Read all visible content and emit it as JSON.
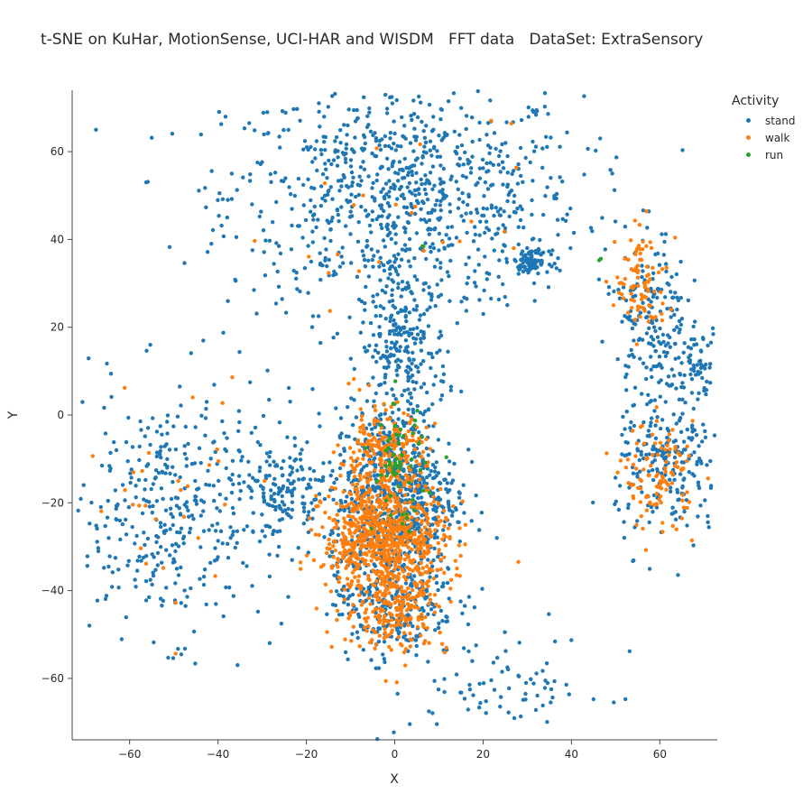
{
  "chart_data": {
    "type": "scatter",
    "title": "t-SNE on KuHar, MotionSense, UCI-HAR and WISDM   FFT data   DataSet: ExtraSensory",
    "xlabel": "X",
    "ylabel": "Y",
    "xlim": [
      -73,
      73
    ],
    "ylim": [
      -74,
      74
    ],
    "xticks": [
      -60,
      -40,
      -20,
      0,
      20,
      40,
      60
    ],
    "yticks": [
      -60,
      -40,
      -20,
      0,
      20,
      40,
      60
    ],
    "grid": false,
    "legend": {
      "title": "Activity",
      "placement": "top-right"
    },
    "series": [
      {
        "name": "stand",
        "color": "#1f77b4",
        "clusters": [
          {
            "cx": 2,
            "cy": 50,
            "sx": 20,
            "sy": 13,
            "n": 900
          },
          {
            "cx": 2,
            "cy": 15,
            "sx": 5,
            "sy": 9,
            "n": 260
          },
          {
            "cx": -50,
            "cy": -22,
            "sx": 13,
            "sy": 14,
            "n": 420
          },
          {
            "cx": 0,
            "cy": -18,
            "sx": 7,
            "sy": 10,
            "n": 700
          },
          {
            "cx": 0,
            "cy": -42,
            "sx": 7,
            "sy": 7,
            "n": 260
          },
          {
            "cx": 58,
            "cy": 22,
            "sx": 4,
            "sy": 10,
            "n": 180
          },
          {
            "cx": 62,
            "cy": -12,
            "sx": 6,
            "sy": 9,
            "n": 220
          },
          {
            "cx": 68,
            "cy": 12,
            "sx": 3,
            "sy": 4,
            "n": 60
          },
          {
            "cx": 31,
            "cy": 35,
            "sx": 2,
            "sy": 1.2,
            "n": 80
          },
          {
            "cx": 25,
            "cy": -62,
            "sx": 12,
            "sy": 6,
            "n": 80
          },
          {
            "cx": -25,
            "cy": -18,
            "sx": 5,
            "sy": 5,
            "n": 120
          }
        ]
      },
      {
        "name": "walk",
        "color": "#ff7f0e",
        "clusters": [
          {
            "cx": -2,
            "cy": -28,
            "sx": 7,
            "sy": 6,
            "n": 700
          },
          {
            "cx": -3,
            "cy": -10,
            "sx": 5,
            "sy": 6,
            "n": 260
          },
          {
            "cx": 0,
            "cy": -44,
            "sx": 6,
            "sy": 5,
            "n": 220
          },
          {
            "cx": 56,
            "cy": 30,
            "sx": 3,
            "sy": 6,
            "n": 90
          },
          {
            "cx": 60,
            "cy": -14,
            "sx": 4,
            "sy": 6,
            "n": 110
          },
          {
            "cx": -50,
            "cy": -20,
            "sx": 10,
            "sy": 14,
            "n": 30
          },
          {
            "cx": 2,
            "cy": 45,
            "sx": 15,
            "sy": 12,
            "n": 25
          }
        ]
      },
      {
        "name": "run",
        "color": "#2ca02c",
        "clusters": [
          {
            "cx": 1,
            "cy": -12,
            "sx": 3,
            "sy": 7,
            "n": 60
          },
          {
            "cx": 46,
            "cy": 36,
            "sx": 0.5,
            "sy": 0.5,
            "n": 2
          },
          {
            "cx": 6,
            "cy": 38,
            "sx": 0.5,
            "sy": 0.5,
            "n": 2
          }
        ]
      }
    ]
  }
}
